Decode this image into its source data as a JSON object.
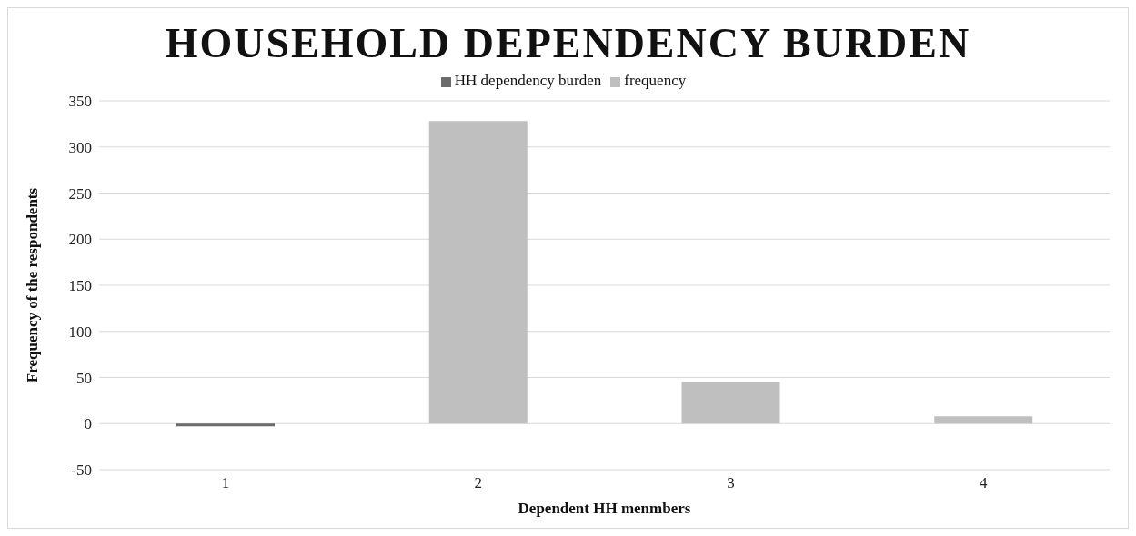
{
  "chart_data": {
    "type": "bar",
    "title": "HOUSEHOLD DEPENDENCY BURDEN",
    "xlabel": "Dependent HH menmbers",
    "ylabel": "Frequency of the respondents",
    "categories": [
      "1",
      "2",
      "3",
      "4"
    ],
    "series": [
      {
        "name": "HH dependency burden",
        "color": "#6b6b6b",
        "values": [
          -3,
          null,
          null,
          null
        ]
      },
      {
        "name": "frequency",
        "color": "#bfbfbf",
        "values": [
          null,
          328,
          45,
          8
        ]
      }
    ],
    "stacked": true,
    "ylim": [
      -50,
      350
    ],
    "yticks": [
      -50,
      0,
      50,
      100,
      150,
      200,
      250,
      300,
      350
    ],
    "grid": "y",
    "legend": "top"
  }
}
